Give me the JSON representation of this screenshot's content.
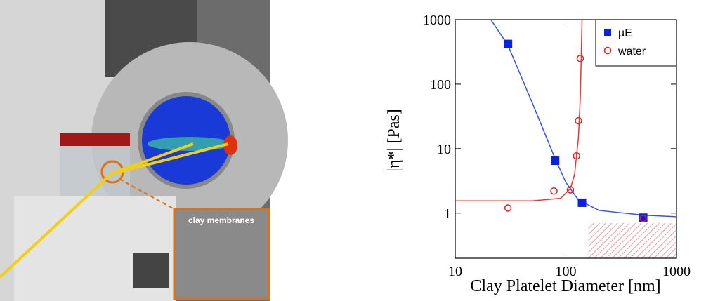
{
  "photo": {
    "inset_label": "clay membranes"
  },
  "chart_data": {
    "type": "scatter",
    "x_label": "Clay Platelet Diameter [nm]",
    "y_label": "|η*|  [Pas]",
    "xlim": [
      10,
      1000
    ],
    "xticks": [
      10,
      100,
      1000
    ],
    "ylim": [
      0.2,
      1000
    ],
    "yticks": [
      1,
      10,
      100,
      1000
    ],
    "log_x": true,
    "log_y": true,
    "legend": "top-right",
    "series": [
      {
        "name": "µE",
        "color": "#0a1ee6",
        "marker": "square",
        "x": [
          30,
          80,
          140,
          500
        ],
        "values": [
          420,
          6.5,
          1.45,
          0.85
        ]
      },
      {
        "name": "water",
        "color": "#e61e1e",
        "marker": "open-circle",
        "x": [
          30,
          78,
          110,
          125,
          130,
          135,
          500
        ],
        "values": [
          1.2,
          2.2,
          2.3,
          7.7,
          27,
          250,
          0.83
        ]
      }
    ],
    "fits": [
      {
        "color": "#3355ee",
        "x": [
          21,
          30,
          50,
          80,
          100,
          130,
          200,
          500,
          1000
        ],
        "values": [
          1000,
          400,
          50,
          7,
          3,
          1.6,
          1.1,
          0.93,
          0.88
        ]
      },
      {
        "color": "#ee3333",
        "x": [
          10,
          50,
          90,
          110,
          120,
          130,
          135,
          138,
          140
        ],
        "values": [
          1.55,
          1.55,
          1.7,
          2.4,
          4,
          15,
          60,
          300,
          1000
        ]
      }
    ],
    "hatched_region": {
      "x": [
        160,
        1000
      ],
      "y": [
        0.2,
        0.7
      ],
      "color": "#e8a0a0"
    }
  }
}
